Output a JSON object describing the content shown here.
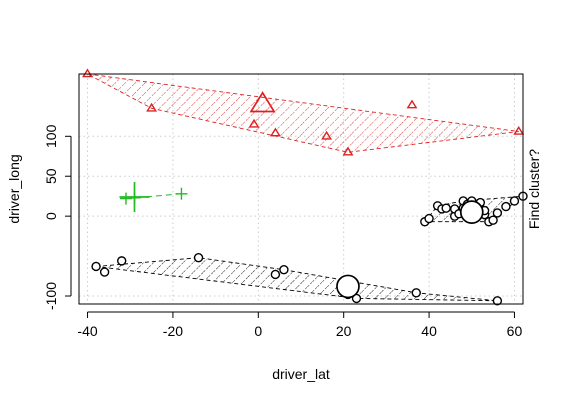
{
  "chart_data": {
    "type": "scatter",
    "xlabel": "driver_lat",
    "ylabel": "driver_long",
    "right_label": "Find cluster?",
    "x_ticks": [
      -40,
      -20,
      0,
      20,
      40,
      60
    ],
    "y_ticks": [
      -100,
      0,
      50,
      100
    ],
    "xlim": [
      -42,
      62
    ],
    "ylim": [
      -110,
      178
    ],
    "grid": true,
    "colors": {
      "cluster1": "#000000",
      "cluster2": "#df2020",
      "cluster3": "#22bb22",
      "grid": "#cccccc"
    },
    "series": [
      {
        "marker": "circle",
        "color": "#000000",
        "points": [
          [
            -38,
            -63
          ],
          [
            -36,
            -70
          ],
          [
            -32,
            -56
          ],
          [
            -14,
            -52
          ],
          [
            4,
            -73
          ],
          [
            6,
            -67
          ],
          [
            21,
            -98
          ],
          [
            23,
            -103
          ],
          [
            37,
            -96
          ],
          [
            56,
            -106
          ],
          [
            39,
            -7
          ],
          [
            40,
            -3
          ],
          [
            42,
            13
          ],
          [
            43,
            9
          ],
          [
            44,
            10
          ],
          [
            46,
            0
          ],
          [
            46,
            9
          ],
          [
            47,
            3
          ],
          [
            48,
            19
          ],
          [
            48,
            10
          ],
          [
            49,
            4
          ],
          [
            49,
            15
          ],
          [
            50,
            0
          ],
          [
            50,
            19
          ],
          [
            51,
            5
          ],
          [
            52,
            10
          ],
          [
            52,
            17
          ],
          [
            53,
            2
          ],
          [
            53,
            7
          ],
          [
            54,
            -7
          ],
          [
            55,
            -5
          ],
          [
            56,
            4
          ],
          [
            58,
            12
          ],
          [
            60,
            19
          ],
          [
            62,
            25
          ]
        ],
        "centers": [
          [
            21,
            -88
          ],
          [
            50,
            5
          ]
        ],
        "hulls": [
          [
            [
              -38,
              -63
            ],
            [
              -14,
              -52
            ],
            [
              6,
              -67
            ],
            [
              37,
              -96
            ],
            [
              56,
              -106
            ],
            [
              23,
              -103
            ]
          ],
          [
            [
              39,
              -7
            ],
            [
              42,
              13
            ],
            [
              48,
              19
            ],
            [
              62,
              25
            ],
            [
              54,
              -7
            ]
          ]
        ]
      },
      {
        "marker": "triangle",
        "color": "#df2020",
        "points": [
          [
            -40,
            178
          ],
          [
            -25,
            135
          ],
          [
            -1,
            115
          ],
          [
            4,
            104
          ],
          [
            16,
            100
          ],
          [
            21,
            80
          ],
          [
            36,
            139
          ],
          [
            61,
            106
          ]
        ],
        "centers": [
          [
            1,
            140
          ]
        ],
        "hulls": [
          [
            [
              -40,
              178
            ],
            [
              61,
              106
            ],
            [
              21,
              80
            ],
            [
              -25,
              135
            ]
          ]
        ]
      },
      {
        "marker": "plus",
        "color": "#22bb22",
        "points": [
          [
            -31,
            22
          ],
          [
            -29,
            23
          ],
          [
            -18,
            28
          ]
        ],
        "centers": [
          [
            -29,
            24
          ]
        ],
        "hulls": [
          [
            [
              -31,
              22
            ],
            [
              -18,
              28
            ]
          ]
        ]
      }
    ]
  }
}
